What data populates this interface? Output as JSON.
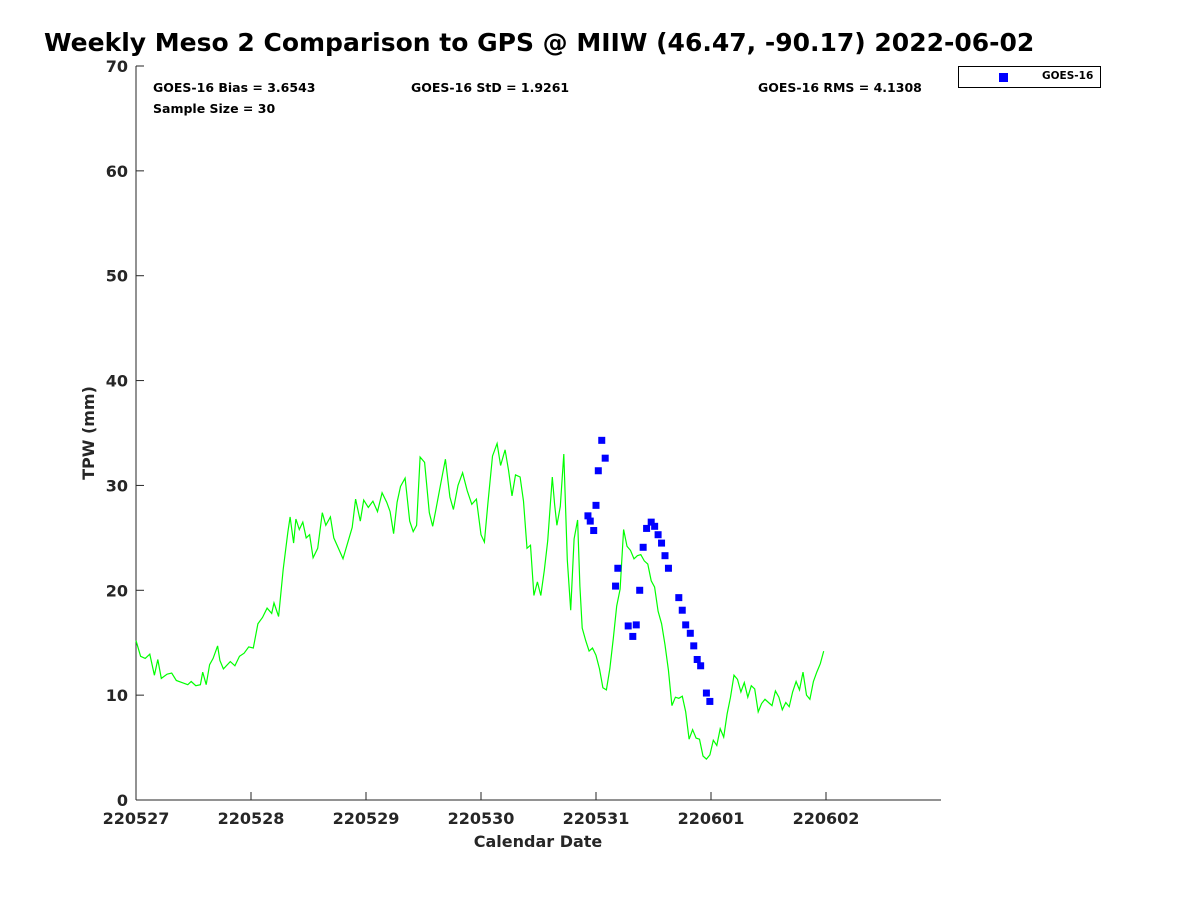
{
  "chart_data": {
    "type": "scatter",
    "title": "Weekly Meso 2 Comparison to GPS @ MIIW (46.47, -90.17) 2022-06-02",
    "xlabel": "Calendar Date",
    "ylabel": "TPW (mm)",
    "xlim": [
      0,
      7
    ],
    "ylim": [
      0,
      70
    ],
    "x_ticks": [
      {
        "value": 0,
        "label": "220527"
      },
      {
        "value": 1,
        "label": "220528"
      },
      {
        "value": 2,
        "label": "220529"
      },
      {
        "value": 3,
        "label": "220530"
      },
      {
        "value": 4,
        "label": "220531"
      },
      {
        "value": 5,
        "label": "220601"
      },
      {
        "value": 6,
        "label": "220602"
      }
    ],
    "y_ticks": [
      0,
      10,
      20,
      30,
      40,
      50,
      60,
      70
    ],
    "grid": false,
    "legend_position": "top-right",
    "stats": {
      "bias": "GOES-16 Bias = 3.6543",
      "std": "GOES-16 StD = 1.9261",
      "rms": "GOES-16 RMS = 4.1308",
      "sample": "Sample Size = 30"
    },
    "series": [
      {
        "type": "line",
        "color": "#00ff00",
        "points": [
          [
            0.0,
            15.2
          ],
          [
            0.04,
            13.7
          ],
          [
            0.08,
            13.5
          ],
          [
            0.12,
            13.9
          ],
          [
            0.16,
            11.9
          ],
          [
            0.19,
            13.4
          ],
          [
            0.22,
            11.6
          ],
          [
            0.27,
            12.0
          ],
          [
            0.31,
            12.1
          ],
          [
            0.35,
            11.4
          ],
          [
            0.4,
            11.2
          ],
          [
            0.45,
            11.0
          ],
          [
            0.48,
            11.3
          ],
          [
            0.52,
            10.9
          ],
          [
            0.56,
            11.0
          ],
          [
            0.58,
            12.2
          ],
          [
            0.61,
            11.0
          ],
          [
            0.64,
            12.9
          ],
          [
            0.67,
            13.5
          ],
          [
            0.71,
            14.7
          ],
          [
            0.73,
            13.3
          ],
          [
            0.76,
            12.5
          ],
          [
            0.82,
            13.2
          ],
          [
            0.86,
            12.8
          ],
          [
            0.9,
            13.7
          ],
          [
            0.94,
            14.0
          ],
          [
            0.98,
            14.6
          ],
          [
            1.02,
            14.5
          ],
          [
            1.06,
            16.8
          ],
          [
            1.1,
            17.4
          ],
          [
            1.14,
            18.3
          ],
          [
            1.18,
            17.8
          ],
          [
            1.2,
            18.8
          ],
          [
            1.24,
            17.5
          ],
          [
            1.28,
            22.0
          ],
          [
            1.32,
            25.5
          ],
          [
            1.34,
            27.0
          ],
          [
            1.37,
            24.5
          ],
          [
            1.39,
            26.8
          ],
          [
            1.42,
            25.8
          ],
          [
            1.45,
            26.5
          ],
          [
            1.48,
            25.0
          ],
          [
            1.51,
            25.3
          ],
          [
            1.54,
            23.1
          ],
          [
            1.58,
            24.0
          ],
          [
            1.62,
            27.4
          ],
          [
            1.65,
            26.2
          ],
          [
            1.69,
            27.0
          ],
          [
            1.72,
            25.0
          ],
          [
            1.76,
            24.0
          ],
          [
            1.8,
            23.0
          ],
          [
            1.84,
            24.5
          ],
          [
            1.88,
            26.0
          ],
          [
            1.91,
            28.7
          ],
          [
            1.95,
            26.6
          ],
          [
            1.98,
            28.6
          ],
          [
            2.02,
            27.9
          ],
          [
            2.06,
            28.5
          ],
          [
            2.1,
            27.5
          ],
          [
            2.14,
            29.3
          ],
          [
            2.18,
            28.4
          ],
          [
            2.21,
            27.5
          ],
          [
            2.24,
            25.4
          ],
          [
            2.27,
            28.4
          ],
          [
            2.3,
            29.9
          ],
          [
            2.34,
            30.7
          ],
          [
            2.38,
            26.6
          ],
          [
            2.41,
            25.6
          ],
          [
            2.44,
            26.2
          ],
          [
            2.47,
            32.7
          ],
          [
            2.51,
            32.2
          ],
          [
            2.55,
            27.4
          ],
          [
            2.58,
            26.1
          ],
          [
            2.61,
            27.8
          ],
          [
            2.65,
            30.2
          ],
          [
            2.69,
            32.5
          ],
          [
            2.73,
            28.9
          ],
          [
            2.76,
            27.7
          ],
          [
            2.8,
            30.0
          ],
          [
            2.84,
            31.2
          ],
          [
            2.88,
            29.5
          ],
          [
            2.92,
            28.2
          ],
          [
            2.96,
            28.7
          ],
          [
            3.0,
            25.3
          ],
          [
            3.03,
            24.6
          ],
          [
            3.06,
            28.3
          ],
          [
            3.1,
            32.8
          ],
          [
            3.14,
            34.0
          ],
          [
            3.17,
            31.9
          ],
          [
            3.21,
            33.4
          ],
          [
            3.24,
            31.4
          ],
          [
            3.27,
            29.0
          ],
          [
            3.3,
            31.0
          ],
          [
            3.34,
            30.8
          ],
          [
            3.37,
            28.5
          ],
          [
            3.4,
            24.0
          ],
          [
            3.43,
            24.3
          ],
          [
            3.46,
            19.5
          ],
          [
            3.49,
            20.8
          ],
          [
            3.52,
            19.5
          ],
          [
            3.55,
            21.9
          ],
          [
            3.58,
            24.7
          ],
          [
            3.62,
            30.8
          ],
          [
            3.64,
            28.2
          ],
          [
            3.66,
            26.2
          ],
          [
            3.69,
            28.0
          ],
          [
            3.72,
            33.0
          ],
          [
            3.75,
            22.9
          ],
          [
            3.78,
            18.1
          ],
          [
            3.81,
            24.9
          ],
          [
            3.84,
            26.7
          ],
          [
            3.86,
            20.4
          ],
          [
            3.88,
            16.4
          ],
          [
            3.91,
            15.2
          ],
          [
            3.94,
            14.2
          ],
          [
            3.97,
            14.5
          ],
          [
            4.0,
            13.8
          ],
          [
            4.03,
            12.5
          ],
          [
            4.06,
            10.7
          ],
          [
            4.09,
            10.5
          ],
          [
            4.12,
            12.5
          ],
          [
            4.15,
            15.4
          ],
          [
            4.18,
            18.5
          ],
          [
            4.21,
            20.1
          ],
          [
            4.24,
            25.8
          ],
          [
            4.27,
            24.2
          ],
          [
            4.3,
            23.8
          ],
          [
            4.33,
            23.0
          ],
          [
            4.36,
            23.3
          ],
          [
            4.39,
            23.4
          ],
          [
            4.42,
            22.8
          ],
          [
            4.45,
            22.5
          ],
          [
            4.48,
            20.9
          ],
          [
            4.51,
            20.3
          ],
          [
            4.54,
            18.0
          ],
          [
            4.57,
            16.8
          ],
          [
            4.6,
            14.8
          ],
          [
            4.63,
            12.4
          ],
          [
            4.66,
            9.0
          ],
          [
            4.69,
            9.8
          ],
          [
            4.72,
            9.7
          ],
          [
            4.75,
            9.9
          ],
          [
            4.78,
            8.4
          ],
          [
            4.81,
            5.8
          ],
          [
            4.84,
            6.7
          ],
          [
            4.87,
            5.9
          ],
          [
            4.9,
            5.8
          ],
          [
            4.93,
            4.2
          ],
          [
            4.96,
            3.9
          ],
          [
            4.99,
            4.3
          ],
          [
            5.02,
            5.7
          ],
          [
            5.05,
            5.2
          ],
          [
            5.08,
            6.8
          ],
          [
            5.11,
            6.0
          ],
          [
            5.14,
            8.2
          ],
          [
            5.17,
            9.8
          ],
          [
            5.2,
            11.9
          ],
          [
            5.23,
            11.5
          ],
          [
            5.26,
            10.3
          ],
          [
            5.29,
            11.2
          ],
          [
            5.32,
            9.8
          ],
          [
            5.35,
            10.9
          ],
          [
            5.38,
            10.6
          ],
          [
            5.41,
            8.4
          ],
          [
            5.44,
            9.2
          ],
          [
            5.47,
            9.6
          ],
          [
            5.5,
            9.3
          ],
          [
            5.53,
            9.0
          ],
          [
            5.56,
            10.4
          ],
          [
            5.59,
            9.8
          ],
          [
            5.62,
            8.6
          ],
          [
            5.65,
            9.3
          ],
          [
            5.68,
            8.9
          ],
          [
            5.71,
            10.3
          ],
          [
            5.74,
            11.3
          ],
          [
            5.77,
            10.5
          ],
          [
            5.8,
            12.2
          ],
          [
            5.83,
            10.0
          ],
          [
            5.86,
            9.6
          ],
          [
            5.89,
            11.3
          ],
          [
            5.92,
            12.2
          ],
          [
            5.95,
            13.0
          ],
          [
            5.98,
            14.2
          ]
        ]
      },
      {
        "type": "scatter",
        "name": "GOES-16",
        "color": "#0000ff",
        "points": [
          [
            3.93,
            27.1
          ],
          [
            3.95,
            26.6
          ],
          [
            3.98,
            25.7
          ],
          [
            4.0,
            28.1
          ],
          [
            4.02,
            31.4
          ],
          [
            4.05,
            34.3
          ],
          [
            4.08,
            32.6
          ],
          [
            4.17,
            20.4
          ],
          [
            4.19,
            22.1
          ],
          [
            4.28,
            16.6
          ],
          [
            4.32,
            15.6
          ],
          [
            4.35,
            16.7
          ],
          [
            4.38,
            20.0
          ],
          [
            4.41,
            24.1
          ],
          [
            4.44,
            25.9
          ],
          [
            4.48,
            26.5
          ],
          [
            4.51,
            26.1
          ],
          [
            4.54,
            25.3
          ],
          [
            4.57,
            24.5
          ],
          [
            4.6,
            23.3
          ],
          [
            4.63,
            22.1
          ],
          [
            4.72,
            19.3
          ],
          [
            4.75,
            18.1
          ],
          [
            4.78,
            16.7
          ],
          [
            4.82,
            15.9
          ],
          [
            4.85,
            14.7
          ],
          [
            4.88,
            13.4
          ],
          [
            4.91,
            12.8
          ],
          [
            4.96,
            10.2
          ],
          [
            4.99,
            9.4
          ]
        ]
      }
    ]
  }
}
